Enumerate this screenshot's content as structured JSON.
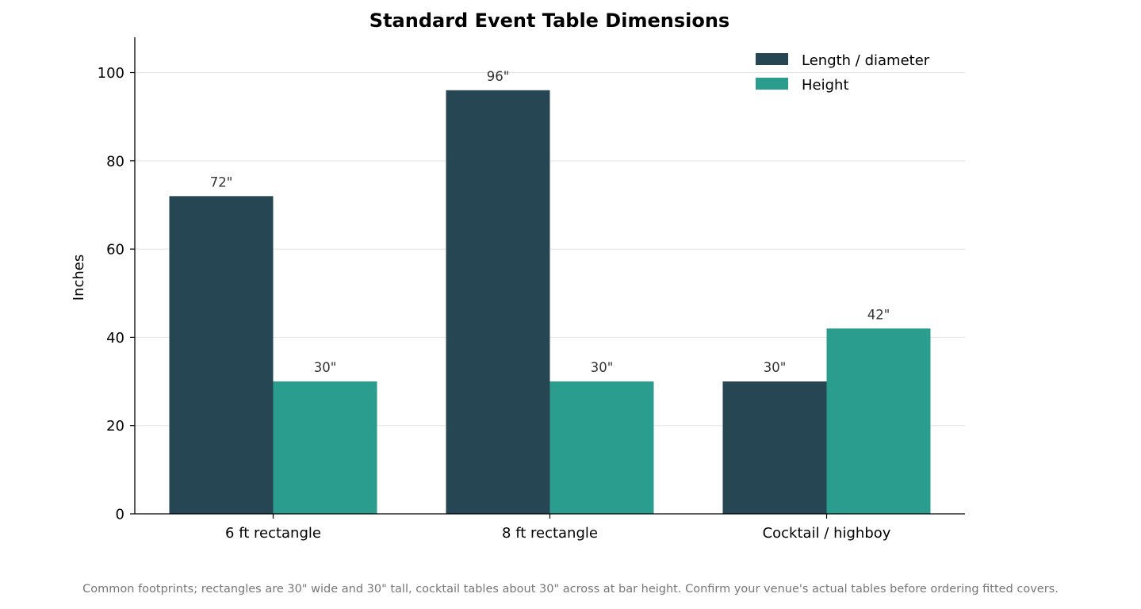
{
  "chart_data": {
    "type": "bar",
    "title": "Standard Event Table Dimensions",
    "xlabel": "",
    "ylabel": "Inches",
    "categories": [
      "6 ft rectangle",
      "8 ft rectangle",
      "Cocktail / highboy"
    ],
    "series": [
      {
        "name": "Length / diameter",
        "values": [
          72,
          96,
          30
        ],
        "color": "#264653",
        "labels": [
          "72\"",
          "96\"",
          "30\""
        ]
      },
      {
        "name": "Height",
        "values": [
          30,
          30,
          42
        ],
        "color": "#2a9d8f",
        "labels": [
          "30\"",
          "30\"",
          "42\""
        ]
      }
    ],
    "ylim": [
      0,
      108
    ],
    "yticks": [
      0,
      20,
      40,
      60,
      80,
      100
    ],
    "grid": "horizontal",
    "legend": "top-right"
  },
  "caption": "Common footprints; rectangles are 30\" wide and 30\" tall, cocktail tables about 30\" across at bar height. Confirm your venue's actual tables before ordering fitted covers."
}
